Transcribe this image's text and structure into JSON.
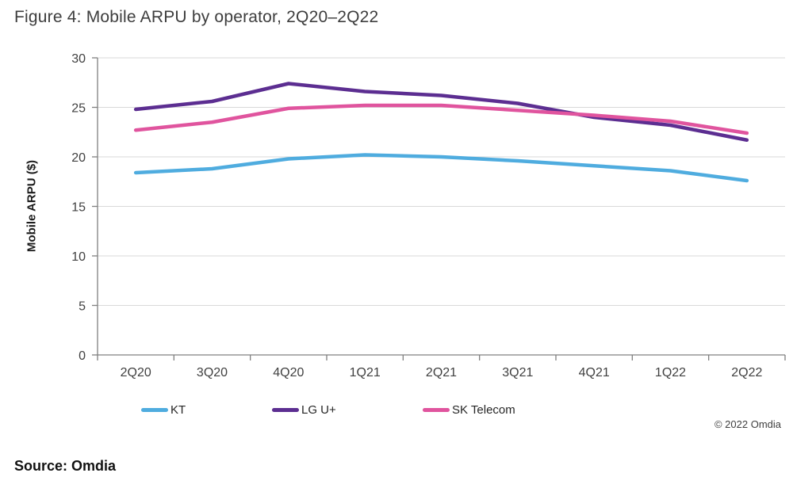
{
  "figure": {
    "title": "Figure 4: Mobile ARPU by operator, 2Q20–2Q22",
    "source": "Source: Omdia",
    "copyright": "© 2022 Omdia"
  },
  "colors": {
    "grid": "#d9d9d9",
    "axis": "#808080",
    "text": "#404040"
  },
  "chart_data": {
    "type": "line",
    "title": "Figure 4: Mobile ARPU by operator, 2Q20–2Q22",
    "xlabel": "",
    "ylabel": "Mobile ARPU ($)",
    "ylim": [
      0,
      30
    ],
    "y_ticks": [
      0,
      5,
      10,
      15,
      20,
      25,
      30
    ],
    "grid": "horizontal",
    "legend_position": "bottom",
    "categories": [
      "2Q20",
      "3Q20",
      "4Q20",
      "1Q21",
      "2Q21",
      "3Q21",
      "4Q21",
      "1Q22",
      "2Q22"
    ],
    "series": [
      {
        "name": "KT",
        "color": "#4facdf",
        "values": [
          18.4,
          18.8,
          19.8,
          20.2,
          20.0,
          19.6,
          19.1,
          18.6,
          17.6
        ]
      },
      {
        "name": "LG U+",
        "color": "#5c2e91",
        "values": [
          24.8,
          25.6,
          27.4,
          26.6,
          26.2,
          25.4,
          24.0,
          23.2,
          21.7
        ]
      },
      {
        "name": "SK Telecom",
        "color": "#e0549e",
        "values": [
          22.7,
          23.5,
          24.9,
          25.2,
          25.2,
          24.7,
          24.2,
          23.6,
          22.4
        ]
      }
    ]
  }
}
